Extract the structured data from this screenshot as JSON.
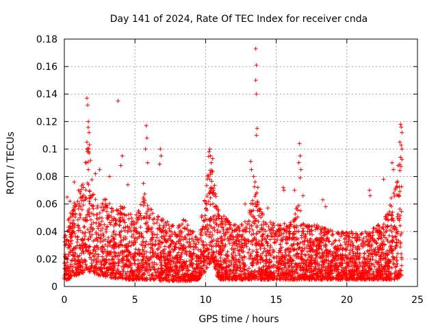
{
  "chart_data": {
    "type": "scatter",
    "title": "Day 141 of 2024, Rate Of TEC Index for receiver cnda",
    "xlabel": "GPS time / hours",
    "ylabel": "ROTI / TECUs",
    "xlim": [
      0,
      25
    ],
    "ylim": [
      0,
      0.18
    ],
    "xticks": [
      "0",
      "5",
      "10",
      "15",
      "20",
      "25"
    ],
    "yticks": [
      "0",
      "0.02",
      "0.04",
      "0.06",
      "0.08",
      "0.1",
      "0.12",
      "0.14",
      "0.16",
      "0.18"
    ],
    "grid": true,
    "marker": "+",
    "colors": {
      "points": "#ff0000",
      "grid": "#a0a0a0",
      "axes": "#000000"
    },
    "envelope": {
      "description": "estimated upper and lower bounds of the dense point cloud (hours, TECU)",
      "x": [
        0,
        0.3,
        0.6,
        1.0,
        1.4,
        1.7,
        2.0,
        2.5,
        3.0,
        3.5,
        4.0,
        4.5,
        5.0,
        5.5,
        5.8,
        6.2,
        7.0,
        7.5,
        8.0,
        8.5,
        9.0,
        9.5,
        9.9,
        10.2,
        10.5,
        10.8,
        11.0,
        11.5,
        12.0,
        12.5,
        13.0,
        13.5,
        13.8,
        14.2,
        15.0,
        15.5,
        16.0,
        16.6,
        17.0,
        17.5,
        18.0,
        18.5,
        19.0,
        19.5,
        20.0,
        20.5,
        21.0,
        21.5,
        22.0,
        22.5,
        23.0,
        23.5,
        23.9
      ],
      "upper": [
        0.035,
        0.05,
        0.06,
        0.065,
        0.08,
        0.12,
        0.07,
        0.06,
        0.065,
        0.055,
        0.06,
        0.055,
        0.05,
        0.065,
        0.075,
        0.055,
        0.05,
        0.045,
        0.045,
        0.05,
        0.04,
        0.04,
        0.06,
        0.1,
        0.09,
        0.06,
        0.055,
        0.05,
        0.045,
        0.045,
        0.05,
        0.075,
        0.06,
        0.05,
        0.045,
        0.045,
        0.05,
        0.06,
        0.045,
        0.045,
        0.045,
        0.045,
        0.04,
        0.04,
        0.04,
        0.04,
        0.04,
        0.04,
        0.045,
        0.045,
        0.06,
        0.08,
        0.11
      ],
      "lower": [
        0.005,
        0.005,
        0.008,
        0.008,
        0.01,
        0.01,
        0.01,
        0.008,
        0.007,
        0.006,
        0.006,
        0.005,
        0.005,
        0.005,
        0.005,
        0.005,
        0.004,
        0.004,
        0.004,
        0.004,
        0.004,
        0.005,
        0.01,
        0.015,
        0.02,
        0.008,
        0.005,
        0.005,
        0.005,
        0.005,
        0.005,
        0.005,
        0.005,
        0.005,
        0.005,
        0.005,
        0.005,
        0.005,
        0.005,
        0.005,
        0.005,
        0.005,
        0.005,
        0.005,
        0.005,
        0.005,
        0.005,
        0.005,
        0.005,
        0.005,
        0.005,
        0.005,
        0.008
      ]
    },
    "outliers": [
      {
        "x": 1.6,
        "y": 0.137
      },
      {
        "x": 1.65,
        "y": 0.132
      },
      {
        "x": 1.7,
        "y": 0.12
      },
      {
        "x": 1.75,
        "y": 0.112
      },
      {
        "x": 1.6,
        "y": 0.105
      },
      {
        "x": 1.65,
        "y": 0.098
      },
      {
        "x": 1.55,
        "y": 0.09
      },
      {
        "x": 1.7,
        "y": 0.085
      },
      {
        "x": 2.5,
        "y": 0.085
      },
      {
        "x": 2.2,
        "y": 0.082
      },
      {
        "x": 3.8,
        "y": 0.135
      },
      {
        "x": 4.1,
        "y": 0.095
      },
      {
        "x": 4.0,
        "y": 0.088
      },
      {
        "x": 3.2,
        "y": 0.08
      },
      {
        "x": 5.8,
        "y": 0.117
      },
      {
        "x": 5.85,
        "y": 0.108
      },
      {
        "x": 5.75,
        "y": 0.1
      },
      {
        "x": 5.9,
        "y": 0.09
      },
      {
        "x": 6.8,
        "y": 0.1
      },
      {
        "x": 6.85,
        "y": 0.095
      },
      {
        "x": 6.75,
        "y": 0.089
      },
      {
        "x": 4.5,
        "y": 0.074
      },
      {
        "x": 5.6,
        "y": 0.075
      },
      {
        "x": 0.7,
        "y": 0.076
      },
      {
        "x": 1.0,
        "y": 0.07
      },
      {
        "x": 13.55,
        "y": 0.173
      },
      {
        "x": 13.6,
        "y": 0.161
      },
      {
        "x": 13.55,
        "y": 0.15
      },
      {
        "x": 13.6,
        "y": 0.14
      },
      {
        "x": 13.65,
        "y": 0.115
      },
      {
        "x": 13.6,
        "y": 0.11
      },
      {
        "x": 13.2,
        "y": 0.091
      },
      {
        "x": 13.25,
        "y": 0.085
      },
      {
        "x": 13.4,
        "y": 0.08
      },
      {
        "x": 13.5,
        "y": 0.076
      },
      {
        "x": 13.7,
        "y": 0.072
      },
      {
        "x": 12.8,
        "y": 0.06
      },
      {
        "x": 14.4,
        "y": 0.057
      },
      {
        "x": 16.65,
        "y": 0.104
      },
      {
        "x": 16.7,
        "y": 0.095
      },
      {
        "x": 16.6,
        "y": 0.09
      },
      {
        "x": 16.75,
        "y": 0.085
      },
      {
        "x": 16.7,
        "y": 0.079
      },
      {
        "x": 16.3,
        "y": 0.07
      },
      {
        "x": 16.9,
        "y": 0.066
      },
      {
        "x": 15.5,
        "y": 0.072
      },
      {
        "x": 15.55,
        "y": 0.07
      },
      {
        "x": 18.3,
        "y": 0.063
      },
      {
        "x": 18.5,
        "y": 0.058
      },
      {
        "x": 21.6,
        "y": 0.07
      },
      {
        "x": 21.65,
        "y": 0.066
      },
      {
        "x": 22.6,
        "y": 0.078
      },
      {
        "x": 23.2,
        "y": 0.09
      },
      {
        "x": 23.3,
        "y": 0.085
      },
      {
        "x": 23.8,
        "y": 0.118
      },
      {
        "x": 23.85,
        "y": 0.116
      },
      {
        "x": 23.9,
        "y": 0.112
      },
      {
        "x": 23.75,
        "y": 0.105
      },
      {
        "x": 23.9,
        "y": 0.1
      },
      {
        "x": 23.8,
        "y": 0.094
      },
      {
        "x": 10.3,
        "y": 0.1
      },
      {
        "x": 10.25,
        "y": 0.098
      },
      {
        "x": 10.35,
        "y": 0.095
      },
      {
        "x": 10.5,
        "y": 0.093
      },
      {
        "x": 10.4,
        "y": 0.09
      },
      {
        "x": 0.2,
        "y": 0.065
      },
      {
        "x": 0.4,
        "y": 0.062
      }
    ]
  }
}
